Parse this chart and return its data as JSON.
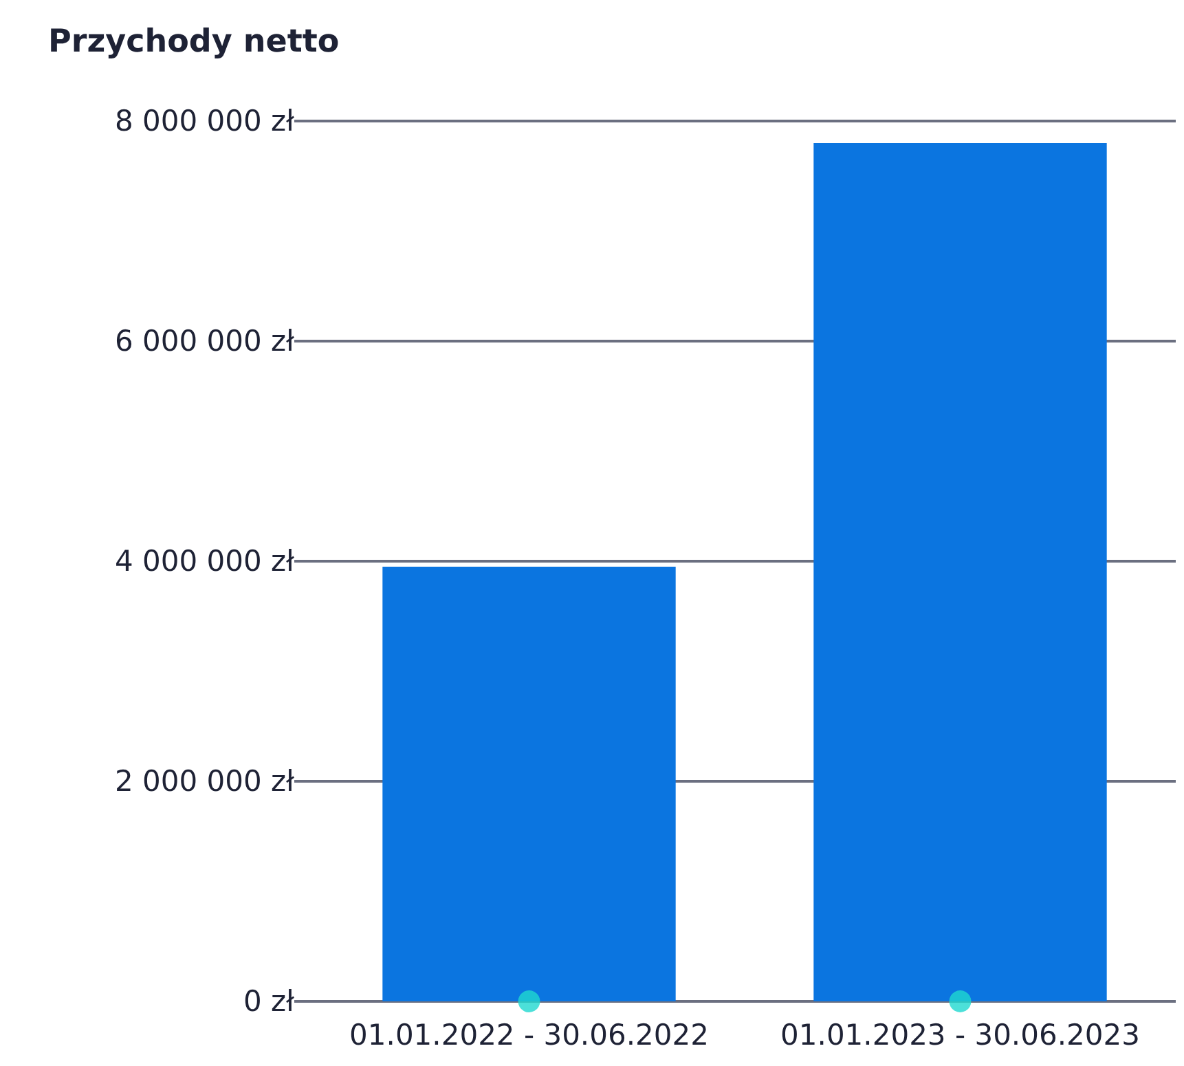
{
  "chart_data": {
    "type": "bar",
    "title": "Przychody netto",
    "categories": [
      "01.01.2022 - 30.06.2022",
      "01.01.2023 - 30.06.2023"
    ],
    "series": [
      {
        "color": "#0b75e0",
        "values": [
          3950000,
          7800000
        ]
      },
      {
        "type": "scatter",
        "color": "#1fd8cf",
        "x": [
          "01.01.2022 - 30.06.2022",
          "01.01.2023 - 30.06.2023"
        ],
        "values": [
          0,
          0
        ]
      }
    ],
    "ylim": [
      0,
      8000000
    ],
    "yticks": [
      {
        "value": 0,
        "label": "0 zł"
      },
      {
        "value": 2000000,
        "label": "2 000 000 zł"
      },
      {
        "value": 4000000,
        "label": "4 000 000 zł"
      },
      {
        "value": 6000000,
        "label": "6 000 000 zł"
      },
      {
        "value": 8000000,
        "label": "8 000 000 zł"
      }
    ],
    "grid": "y",
    "marker": "circle"
  }
}
